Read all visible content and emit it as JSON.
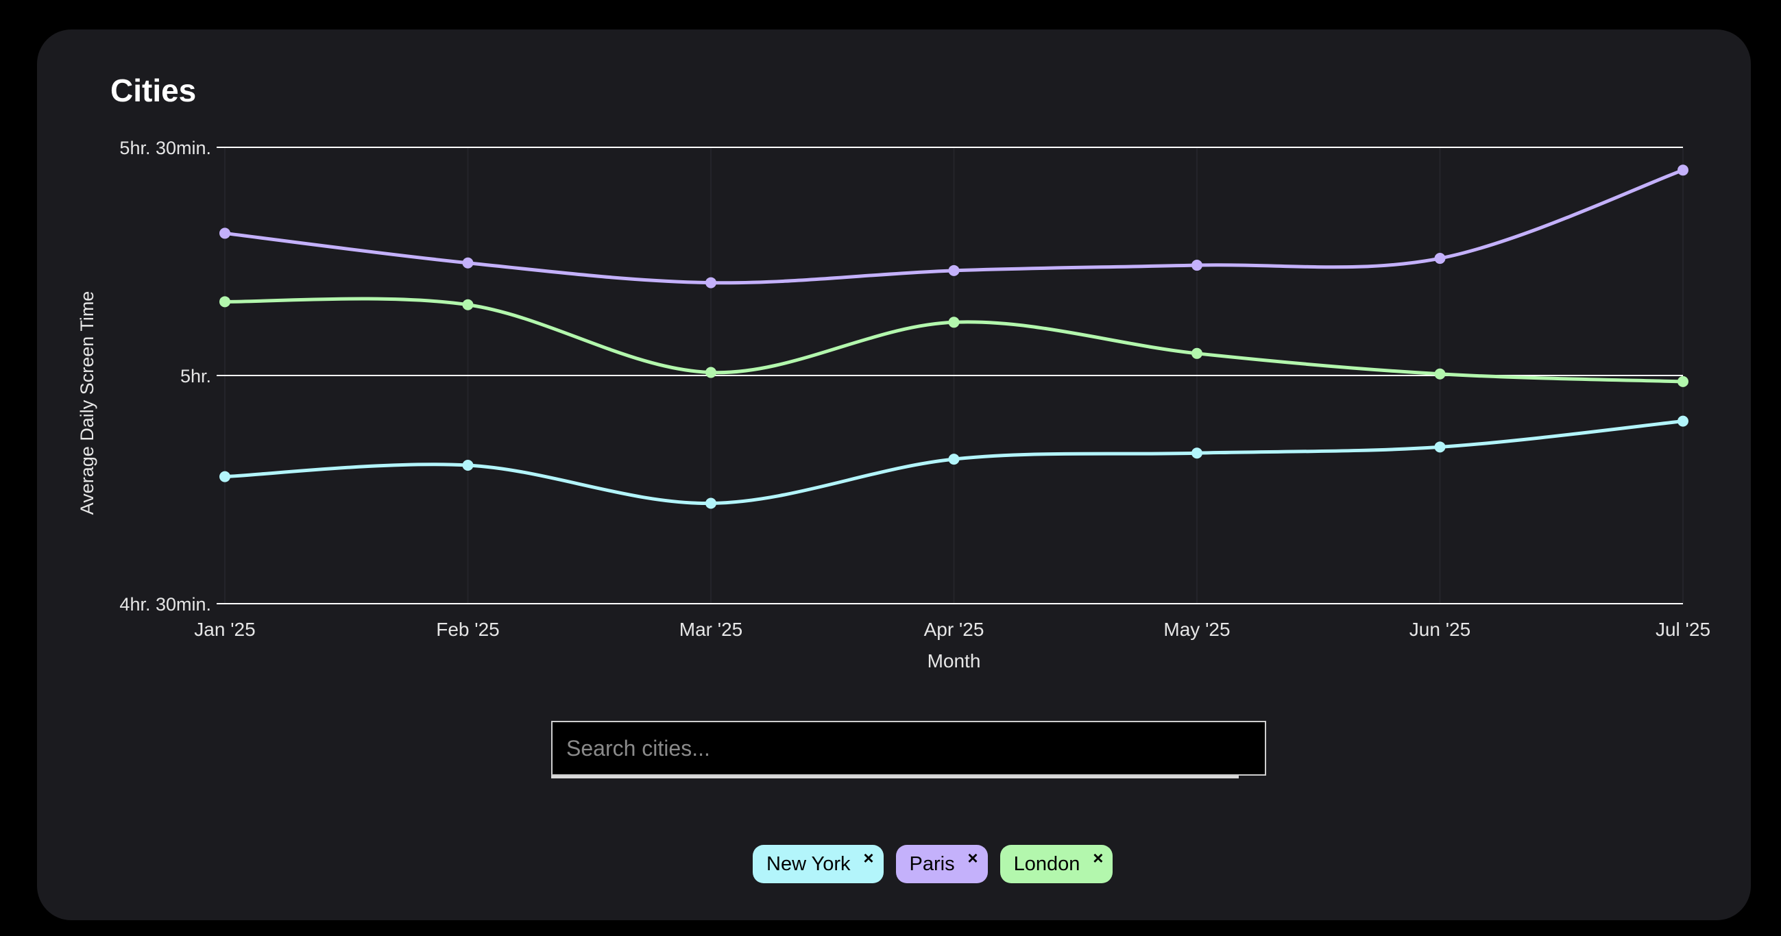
{
  "page": {
    "title": "Cities"
  },
  "search": {
    "placeholder": "Search cities..."
  },
  "tags": [
    {
      "label": "New York",
      "color": "#b3f5fb",
      "close": "×"
    },
    {
      "label": "Paris",
      "color": "#c4b1fb",
      "close": "×"
    },
    {
      "label": "London",
      "color": "#b3f7ad",
      "close": "×"
    }
  ],
  "chart_data": {
    "type": "line",
    "xlabel": "Month",
    "ylabel": "Average Daily Screen Time",
    "categories": [
      "Jan '25",
      "Feb '25",
      "Mar '25",
      "Apr '25",
      "May '25",
      "Jun '25",
      "Jul '25"
    ],
    "y_unit": "minutes",
    "ylim": [
      270,
      330
    ],
    "yticks": [
      {
        "value": 330,
        "label": "5hr. 30min."
      },
      {
        "value": 300,
        "label": "5hr."
      },
      {
        "value": 270,
        "label": "4hr. 30min."
      }
    ],
    "grid": "horizontal",
    "series": [
      {
        "name": "New York",
        "color": "#b3f5fb",
        "values": [
          286.7,
          288.2,
          283.2,
          289.0,
          289.8,
          290.6,
          294.0
        ]
      },
      {
        "name": "Paris",
        "color": "#c4b1fb",
        "values": [
          318.7,
          314.8,
          312.2,
          313.8,
          314.5,
          315.4,
          327.0
        ]
      },
      {
        "name": "London",
        "color": "#b3f7ad",
        "values": [
          309.7,
          309.3,
          300.4,
          307.0,
          302.9,
          300.2,
          299.2
        ]
      }
    ]
  }
}
